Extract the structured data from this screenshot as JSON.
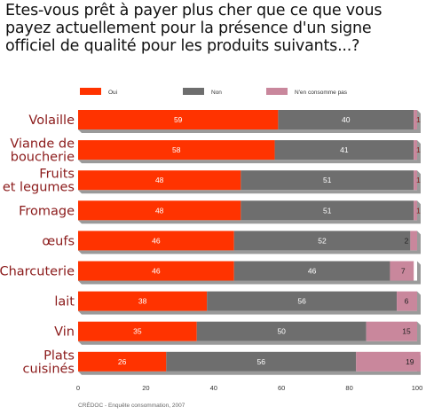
{
  "title": "Etes-vous prêt à payer plus cher que ce que vous payez actuellement pour la présence d'un signe officiel de qualité pour les produits suivants...?",
  "source": "CRÉDOC - Enquête consommation, 2007",
  "colors": {
    "oui": "#ff3300",
    "non": "#6e6e6e",
    "nconsomme": "#c9879c"
  },
  "chart_data": {
    "type": "bar",
    "orientation": "horizontal",
    "stacked": true,
    "categories": [
      "Volaille",
      "Viande de\nboucherie",
      "Fruits\net legumes",
      "Fromage",
      "œufs",
      "Charcuterie",
      "lait",
      "Vin",
      "Plats\ncuisinés"
    ],
    "series": [
      {
        "name": "Oui",
        "values": [
          59,
          58,
          48,
          48,
          46,
          46,
          38,
          35,
          26
        ]
      },
      {
        "name": "Non",
        "values": [
          40,
          41,
          51,
          51,
          52,
          46,
          56,
          50,
          56
        ]
      },
      {
        "name": "N'en consomme pas",
        "values": [
          1,
          1,
          1,
          1,
          2,
          7,
          6,
          15,
          19
        ]
      }
    ],
    "xlim": [
      0,
      100
    ],
    "xticks": [
      "0",
      "20",
      "40",
      "60",
      "80",
      "100"
    ],
    "legend_position": "top",
    "grid": false
  }
}
